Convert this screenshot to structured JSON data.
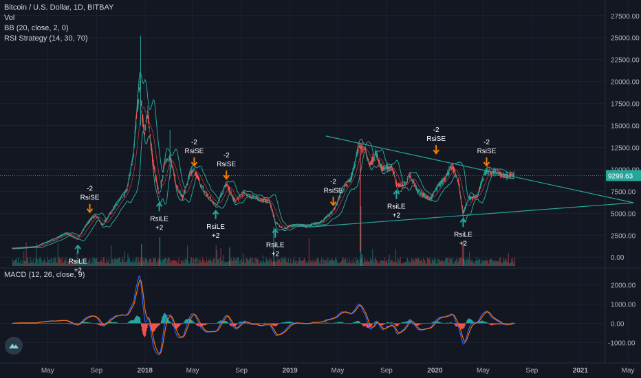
{
  "legend": {
    "title": "Bitcoin / U.S. Dollar, 1D, BITBAY",
    "vol": "Vol",
    "bb": "BB (20, close, 2, 0)",
    "rsi": "RSI Strategy (14, 30, 70)"
  },
  "macd_legend": "MACD (12, 26, close, 9)",
  "colors": {
    "background": "#131722",
    "grid": "#1e2230",
    "axis_text": "#b2b5be",
    "price_label_bg": "#26a69a",
    "triangle": "#26a69a",
    "signal_text": "#ffffff",
    "rsile_arrow": "#26a69a",
    "rsise_arrow": "#f57c00",
    "macd_line": "#2962ff",
    "signal_line": "#ff6d00",
    "hist_pos": "#26a69a",
    "hist_neg": "#ef5350"
  },
  "logo_icon": "tradingview-logo-icon",
  "chart_data": [
    {
      "type": "candlestick",
      "title": "Bitcoin / U.S. Dollar, 1D, BITBAY",
      "x_ticks": [
        "May",
        "Sep",
        "2018",
        "May",
        "Sep",
        "2019",
        "May",
        "Sep",
        "2020",
        "May",
        "Sep",
        "2021",
        "May"
      ],
      "x_tick_dates": [
        "2017-05-01",
        "2017-09-01",
        "2018-01-01",
        "2018-05-01",
        "2018-09-01",
        "2019-01-01",
        "2019-05-01",
        "2019-09-01",
        "2020-01-01",
        "2020-05-01",
        "2020-09-01",
        "2021-01-01",
        "2021-05-01"
      ],
      "y_ticks": [
        "27500.00",
        "25000.00",
        "22500.00",
        "20000.00",
        "17500.00",
        "15000.00",
        "12500.00",
        "10000.00",
        "7500.00",
        "5000.00",
        "2500.00",
        "0.00"
      ],
      "ylim": [
        -1000,
        28500
      ],
      "last_price": "9299.63",
      "price_path": [
        [
          "2017-02-01",
          1000
        ],
        [
          "2017-04-01",
          1200
        ],
        [
          "2017-05-20",
          2100
        ],
        [
          "2017-06-15",
          2700
        ],
        [
          "2017-07-15",
          2100
        ],
        [
          "2017-08-15",
          4200
        ],
        [
          "2017-09-01",
          4800
        ],
        [
          "2017-09-15",
          3600
        ],
        [
          "2017-10-15",
          5600
        ],
        [
          "2017-11-15",
          7500
        ],
        [
          "2017-12-01",
          11000
        ],
        [
          "2017-12-17",
          19500
        ],
        [
          "2017-12-30",
          14000
        ],
        [
          "2018-01-08",
          16500
        ],
        [
          "2018-01-20",
          11000
        ],
        [
          "2018-02-06",
          6800
        ],
        [
          "2018-02-20",
          11000
        ],
        [
          "2018-03-05",
          11400
        ],
        [
          "2018-03-20",
          8200
        ],
        [
          "2018-04-06",
          6800
        ],
        [
          "2018-04-25",
          9600
        ],
        [
          "2018-05-05",
          9800
        ],
        [
          "2018-05-30",
          7500
        ],
        [
          "2018-06-28",
          5900
        ],
        [
          "2018-07-25",
          8300
        ],
        [
          "2018-08-15",
          6300
        ],
        [
          "2018-09-05",
          7300
        ],
        [
          "2018-10-15",
          6600
        ],
        [
          "2018-11-10",
          6400
        ],
        [
          "2018-11-25",
          4000
        ],
        [
          "2018-12-15",
          3200
        ],
        [
          "2019-01-10",
          3700
        ],
        [
          "2019-02-08",
          3500
        ],
        [
          "2019-03-20",
          4000
        ],
        [
          "2019-04-20",
          5300
        ],
        [
          "2019-05-15",
          7800
        ],
        [
          "2019-06-01",
          8700
        ],
        [
          "2019-06-26",
          12900
        ],
        [
          "2019-07-10",
          12000
        ],
        [
          "2019-07-20",
          10500
        ],
        [
          "2019-08-05",
          11800
        ],
        [
          "2019-08-20",
          10100
        ],
        [
          "2019-09-15",
          10300
        ],
        [
          "2019-09-26",
          8200
        ],
        [
          "2019-10-20",
          8200
        ],
        [
          "2019-10-27",
          9400
        ],
        [
          "2019-11-20",
          7500
        ],
        [
          "2019-12-18",
          6600
        ],
        [
          "2020-01-20",
          8700
        ],
        [
          "2020-02-14",
          10300
        ],
        [
          "2020-02-28",
          8700
        ],
        [
          "2020-03-12",
          5000
        ],
        [
          "2020-03-25",
          6700
        ],
        [
          "2020-04-15",
          6900
        ],
        [
          "2020-04-30",
          8800
        ],
        [
          "2020-05-10",
          9800
        ],
        [
          "2020-05-20",
          9500
        ],
        [
          "2020-06-05",
          9800
        ],
        [
          "2020-06-25",
          9200
        ],
        [
          "2020-07-10",
          9300
        ],
        [
          "2020-07-19",
          9299.63
        ]
      ],
      "signals": [
        {
          "date": "2017-07-16",
          "price": 1950,
          "type": "RsiLE",
          "label": "RsiLE",
          "qty": "+2"
        },
        {
          "date": "2017-08-15",
          "price": 4500,
          "type": "RsiSE",
          "label": "RsiSE",
          "qty": "-2"
        },
        {
          "date": "2018-02-06",
          "price": 6800,
          "type": "RsiLE",
          "label": "RsiLE",
          "qty": "+2"
        },
        {
          "date": "2018-05-05",
          "price": 9800,
          "type": "RsiSE",
          "label": "RsiSE",
          "qty": "-2"
        },
        {
          "date": "2018-06-28",
          "price": 5900,
          "type": "RsiLE",
          "label": "RsiLE",
          "qty": "+2"
        },
        {
          "date": "2018-07-25",
          "price": 8300,
          "type": "RsiSE",
          "label": "RsiSE",
          "qty": "-2"
        },
        {
          "date": "2018-11-25",
          "price": 3800,
          "type": "RsiLE",
          "label": "RsiLE",
          "qty": "+2"
        },
        {
          "date": "2019-04-20",
          "price": 5300,
          "type": "RsiSE",
          "label": "RsiSE",
          "qty": "-2"
        },
        {
          "date": "2019-09-26",
          "price": 8200,
          "type": "RsiLE",
          "label": "RsiLE",
          "qty": "+2"
        },
        {
          "date": "2020-01-04",
          "price": 11200,
          "type": "RsiSE",
          "label": "RsiSE",
          "qty": "-2"
        },
        {
          "date": "2020-03-12",
          "price": 5000,
          "type": "RsiLE",
          "label": "RsiLE",
          "qty": "+2"
        },
        {
          "date": "2020-05-10",
          "price": 9800,
          "type": "RsiSE",
          "label": "RsiSE",
          "qty": "-2"
        }
      ],
      "triangle": {
        "upper": [
          [
            "2019-04-01",
            13800
          ],
          [
            "2021-05-15",
            6200
          ]
        ],
        "lower": [
          [
            "2019-02-08",
            3400
          ],
          [
            "2021-05-15",
            6200
          ]
        ]
      }
    },
    {
      "type": "line",
      "title": "MACD (12, 26, close, 9)",
      "y_ticks": [
        "2000.00",
        "1000.00",
        "0.00",
        "-1000.00"
      ],
      "ylim": [
        -1700,
        2700
      ]
    }
  ]
}
